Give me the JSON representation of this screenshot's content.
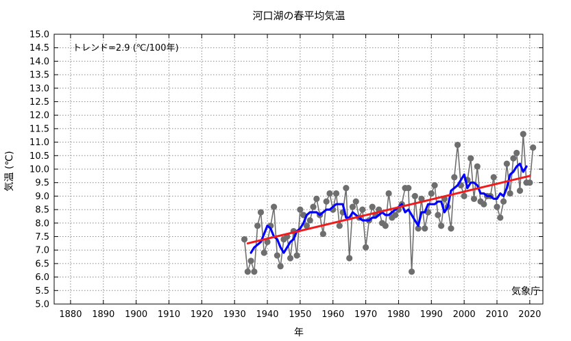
{
  "chart_data": {
    "type": "line",
    "title": "河口湖の春平均気温",
    "xlabel": "年",
    "ylabel": "気温 (℃)",
    "trend_label": "トレンド=2.9 (℃/100年)",
    "source_label": "気象庁",
    "xlim": [
      1875,
      2024
    ],
    "ylim": [
      5.0,
      15.0
    ],
    "x_ticks": [
      1880,
      1890,
      1900,
      1910,
      1920,
      1930,
      1940,
      1950,
      1960,
      1970,
      1980,
      1990,
      2000,
      2010,
      2020
    ],
    "y_ticks": [
      "5.0",
      "5.5",
      "6.0",
      "6.5",
      "7.0",
      "7.5",
      "8.0",
      "8.5",
      "9.0",
      "9.5",
      "10.0",
      "10.5",
      "11.0",
      "11.5",
      "12.0",
      "12.5",
      "13.0",
      "13.5",
      "14.0",
      "14.5",
      "15.0"
    ],
    "grid": true,
    "colors": {
      "annual": "#6e6e6e",
      "moving_average": "#0000ff",
      "trend": "#ee1c1c",
      "grid": "#888888"
    },
    "series": [
      {
        "kind": "annual",
        "x": [
          1933,
          1934,
          1935,
          1936,
          1937,
          1938,
          1939,
          1940,
          1941,
          1942,
          1943,
          1944,
          1945,
          1946,
          1947,
          1948,
          1949,
          1950,
          1951,
          1952,
          1953,
          1954,
          1955,
          1956,
          1957,
          1958,
          1959,
          1960,
          1961,
          1962,
          1963,
          1964,
          1965,
          1966,
          1967,
          1968,
          1969,
          1970,
          1971,
          1972,
          1973,
          1974,
          1975,
          1976,
          1977,
          1978,
          1979,
          1980,
          1981,
          1982,
          1983,
          1984,
          1985,
          1986,
          1987,
          1988,
          1989,
          1990,
          1991,
          1992,
          1993,
          1994,
          1995,
          1996,
          1997,
          1998,
          1999,
          2000,
          2001,
          2002,
          2003,
          2004,
          2005,
          2006,
          2007,
          2008,
          2009,
          2010,
          2011,
          2012,
          2013,
          2014,
          2015,
          2016,
          2017,
          2018,
          2019,
          2020,
          2021
        ],
        "y": [
          7.4,
          6.2,
          6.6,
          6.2,
          7.9,
          8.4,
          6.9,
          7.3,
          7.9,
          8.6,
          6.8,
          6.4,
          7.4,
          7.5,
          6.7,
          7.7,
          6.8,
          8.5,
          8.3,
          7.9,
          8.1,
          8.6,
          8.9,
          8.3,
          7.6,
          8.8,
          9.1,
          8.5,
          9.1,
          7.9,
          8.4,
          9.3,
          6.7,
          8.6,
          8.8,
          8.2,
          8.5,
          7.1,
          8.1,
          8.6,
          8.3,
          8.5,
          8.0,
          7.9,
          9.1,
          8.2,
          8.3,
          8.5,
          8.7,
          9.3,
          9.3,
          6.2,
          9.0,
          7.8,
          8.9,
          7.8,
          8.4,
          9.1,
          9.4,
          8.3,
          7.9,
          8.9,
          8.6,
          7.8,
          9.7,
          10.9,
          9.4,
          9.0,
          9.6,
          10.4,
          8.9,
          10.1,
          8.8,
          8.7,
          9.0,
          9.0,
          9.7,
          8.6,
          8.2,
          8.8,
          10.2,
          9.1,
          10.4,
          10.6,
          9.2,
          11.3,
          9.5,
          9.5,
          10.8
        ]
      },
      {
        "kind": "moving_average",
        "x": [
          1935,
          1936,
          1937,
          1938,
          1939,
          1940,
          1941,
          1942,
          1943,
          1944,
          1945,
          1946,
          1947,
          1948,
          1949,
          1950,
          1951,
          1952,
          1953,
          1954,
          1955,
          1956,
          1957,
          1958,
          1959,
          1960,
          1961,
          1962,
          1963,
          1964,
          1965,
          1966,
          1967,
          1968,
          1969,
          1970,
          1971,
          1972,
          1973,
          1974,
          1975,
          1976,
          1977,
          1978,
          1979,
          1980,
          1981,
          1982,
          1983,
          1984,
          1985,
          1986,
          1987,
          1988,
          1989,
          1990,
          1991,
          1992,
          1993,
          1994,
          1995,
          1996,
          1997,
          1998,
          1999,
          2000,
          2001,
          2002,
          2003,
          2004,
          2005,
          2006,
          2007,
          2008,
          2009,
          2010,
          2011,
          2012,
          2013,
          2014,
          2015,
          2016,
          2017,
          2018,
          2019
        ],
        "y": [
          6.9,
          7.1,
          7.2,
          7.3,
          7.6,
          7.9,
          7.8,
          7.5,
          7.4,
          7.1,
          6.9,
          7.1,
          7.3,
          7.4,
          7.7,
          7.8,
          8.0,
          8.3,
          8.4,
          8.4,
          8.4,
          8.3,
          8.4,
          8.5,
          8.5,
          8.6,
          8.7,
          8.7,
          8.7,
          8.2,
          8.2,
          8.4,
          8.3,
          8.2,
          8.1,
          8.1,
          8.1,
          8.2,
          8.2,
          8.3,
          8.4,
          8.3,
          8.3,
          8.4,
          8.5,
          8.6,
          8.7,
          8.4,
          8.5,
          8.3,
          8.1,
          7.9,
          8.4,
          8.4,
          8.7,
          8.7,
          8.7,
          8.8,
          8.8,
          8.4,
          8.6,
          9.2,
          9.3,
          9.4,
          9.6,
          9.8,
          9.3,
          9.5,
          9.5,
          9.4,
          9.1,
          9.1,
          9.0,
          9.0,
          8.9,
          8.9,
          9.1,
          9.0,
          9.3,
          9.8,
          9.9,
          10.1,
          10.2,
          9.9,
          10.1
        ]
      },
      {
        "kind": "trend",
        "x": [
          1934,
          2020
        ],
        "y": [
          7.25,
          9.75
        ]
      }
    ]
  }
}
